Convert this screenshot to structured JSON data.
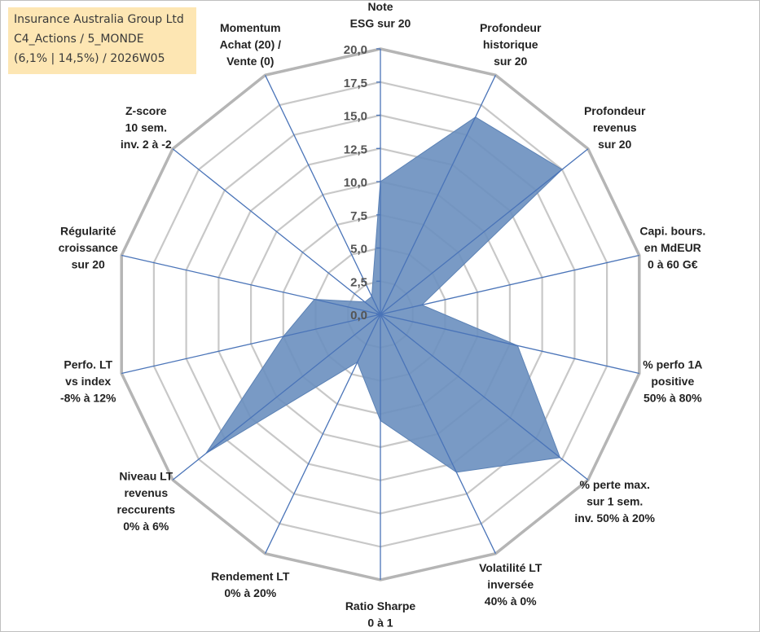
{
  "info": {
    "line1": "Insurance Australia Group Ltd",
    "line2": "C4_Actions / 5_MONDE",
    "line3": "(6,1% | 14,5%) / 2026W05"
  },
  "chart_data": {
    "type": "radar",
    "scale": {
      "min": 0,
      "max": 20,
      "step": 2.5
    },
    "tick_labels": [
      "0,0",
      "2,5",
      "5,0",
      "7,5",
      "10,0",
      "12,5",
      "15,0",
      "17,5",
      "20,0"
    ],
    "grid": true,
    "axes": [
      {
        "key": "note_esg",
        "label": [
          "Note",
          "ESG sur 20"
        ]
      },
      {
        "key": "profondeur_historique",
        "label": [
          "Profondeur",
          "historique",
          "sur 20"
        ]
      },
      {
        "key": "profondeur_revenus",
        "label": [
          "Profondeur",
          "revenus",
          "sur 20"
        ]
      },
      {
        "key": "capi_bours",
        "label": [
          "Capi. bours.",
          "en MdEUR",
          "0 à 60 G€"
        ]
      },
      {
        "key": "perfo_1a",
        "label": [
          "% perfo 1A",
          "positive",
          "50% à 80%"
        ]
      },
      {
        "key": "perte_max",
        "label": [
          "% perte max.",
          "sur 1 sem.",
          "inv. 50% à 20%"
        ]
      },
      {
        "key": "volatilite_lt",
        "label": [
          "Volatilité LT",
          "inversée",
          "40% à 0%"
        ]
      },
      {
        "key": "ratio_sharpe",
        "label": [
          "Ratio Sharpe",
          "0 à 1"
        ]
      },
      {
        "key": "rendement_lt",
        "label": [
          "Rendement LT",
          "0% à 20%"
        ]
      },
      {
        "key": "niveau_lt_revenus",
        "label": [
          "Niveau LT",
          "revenus",
          "reccurents",
          "0% à 6%"
        ]
      },
      {
        "key": "perfo_lt",
        "label": [
          "Perfo. LT",
          "vs index",
          "-8% à 12%"
        ]
      },
      {
        "key": "regularite",
        "label": [
          "Régularité",
          "croissance",
          "sur 20"
        ]
      },
      {
        "key": "z_score",
        "label": [
          "Z-score",
          "10 sem.",
          "inv. 2 à -2"
        ]
      },
      {
        "key": "momentum",
        "label": [
          "Momentum",
          "Achat (20) /",
          "Vente (0)"
        ]
      }
    ],
    "series": [
      {
        "values": [
          10.0,
          16.5,
          17.5,
          3.2,
          10.6,
          17.3,
          13.2,
          8.0,
          4.0,
          16.8,
          7.5,
          5.1,
          1.5,
          1.5
        ]
      }
    ],
    "colors": {
      "fill": "#6a8fbf",
      "fill_opacity": 0.9,
      "axis_line": "#4a74b8",
      "grid": "#c8c8c8",
      "outer_ring": "#b5b5b5"
    }
  }
}
